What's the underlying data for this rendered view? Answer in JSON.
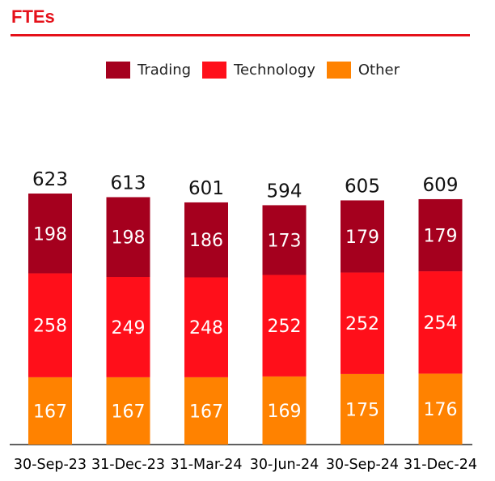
{
  "title": "FTEs",
  "colors": {
    "accent": "#e5111a",
    "trading": "#a5001e",
    "technology": "#ff0f1a",
    "other": "#ff8200"
  },
  "chart_data": {
    "type": "bar",
    "stacked": true,
    "categories": [
      "30-Sep-23",
      "31-Dec-23",
      "31-Mar-24",
      "30-Jun-24",
      "30-Sep-24",
      "31-Dec-24"
    ],
    "series": [
      {
        "name": "Other",
        "color": "#ff8200",
        "values": [
          167,
          167,
          167,
          169,
          175,
          176
        ]
      },
      {
        "name": "Technology",
        "color": "#ff0f1a",
        "values": [
          258,
          249,
          248,
          252,
          252,
          254
        ]
      },
      {
        "name": "Trading",
        "color": "#a5001e",
        "values": [
          198,
          198,
          186,
          173,
          179,
          179
        ]
      }
    ],
    "totals": [
      623,
      613,
      601,
      594,
      605,
      609
    ],
    "legend": {
      "placement": "top",
      "order": [
        "Trading",
        "Technology",
        "Other"
      ]
    },
    "ylim": [
      0,
      700
    ],
    "grid": false
  }
}
